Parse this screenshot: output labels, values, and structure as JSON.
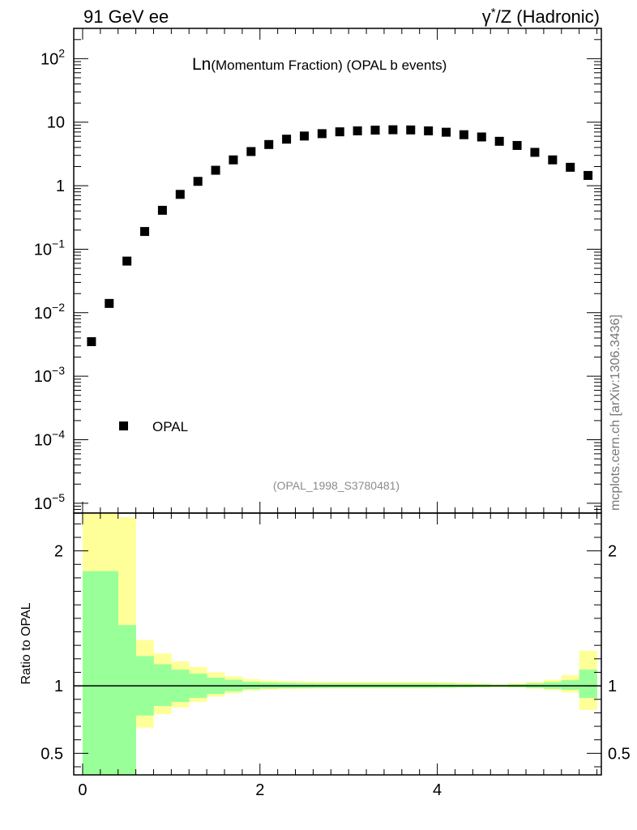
{
  "header": {
    "left": "91 GeV ee",
    "right_prefix": "γ",
    "right_sup": "*",
    "right_suffix": "/Z (Hadronic)"
  },
  "side_label": "mcplots.cern.ch [arXiv:1306.3436]",
  "chart_data": [
    {
      "type": "scatter",
      "title_main": "Ln",
      "title_rest": "(Momentum Fraction) (OPAL b events)",
      "yscale": "log",
      "ylim": [
        7e-06,
        300
      ],
      "xlim": [
        -0.1,
        5.85
      ],
      "y_ticks": [
        {
          "mantissa": "10",
          "exp": "2",
          "value": 100
        },
        {
          "mantissa": "10",
          "exp": "",
          "value": 10
        },
        {
          "mantissa": "1",
          "exp": "",
          "value": 1
        },
        {
          "mantissa": "10",
          "exp": "−1",
          "value": 0.1
        },
        {
          "mantissa": "10",
          "exp": "−2",
          "value": 0.01
        },
        {
          "mantissa": "10",
          "exp": "−3",
          "value": 0.001
        },
        {
          "mantissa": "10",
          "exp": "−4",
          "value": 0.0001
        },
        {
          "mantissa": "10",
          "exp": "−5",
          "value": 1e-05
        }
      ],
      "legend": {
        "label": "OPAL",
        "position": "lower-left"
      },
      "annotation": "(OPAL_1998_S3780481)",
      "series": [
        {
          "name": "OPAL",
          "x": [
            0.1,
            0.3,
            0.5,
            0.7,
            0.9,
            1.1,
            1.3,
            1.5,
            1.7,
            1.9,
            2.1,
            2.3,
            2.5,
            2.7,
            2.9,
            3.1,
            3.3,
            3.5,
            3.7,
            3.9,
            4.1,
            4.3,
            4.5,
            4.7,
            4.9,
            5.1,
            5.3,
            5.5,
            5.7
          ],
          "y": [
            0.0035,
            0.014,
            0.065,
            0.19,
            0.41,
            0.73,
            1.17,
            1.75,
            2.55,
            3.45,
            4.45,
            5.4,
            6.05,
            6.6,
            7.05,
            7.3,
            7.5,
            7.6,
            7.55,
            7.3,
            6.95,
            6.35,
            5.85,
            5.0,
            4.3,
            3.35,
            2.55,
            1.95,
            1.45
          ]
        }
      ]
    },
    {
      "type": "area",
      "ylabel": "Ratio to OPAL",
      "ylim": [
        0.34,
        2.28
      ],
      "xlim": [
        -0.1,
        5.85
      ],
      "x_ticks": [
        "0",
        "2",
        "4"
      ],
      "x_tick_values": [
        0,
        2,
        4
      ],
      "y_ticks": [
        "0.5",
        "1",
        "2"
      ],
      "y_tick_values": [
        0.5,
        1,
        2
      ],
      "reference_line": 1,
      "bin_edges": [
        0.0,
        0.4,
        0.6,
        0.8,
        1.0,
        1.2,
        1.4,
        1.6,
        1.8,
        2.0,
        2.2,
        2.4,
        2.6,
        2.8,
        3.0,
        3.2,
        3.4,
        3.6,
        3.8,
        4.0,
        4.2,
        4.4,
        4.6,
        4.8,
        5.0,
        5.2,
        5.4,
        5.6,
        5.8
      ],
      "band_inner": {
        "color": "#99ff99",
        "low": [
          0.34,
          0.34,
          0.78,
          0.85,
          0.88,
          0.91,
          0.94,
          0.96,
          0.975,
          0.98,
          0.982,
          0.983,
          0.984,
          0.985,
          0.985,
          0.985,
          0.985,
          0.985,
          0.985,
          0.986,
          0.988,
          0.99,
          0.992,
          0.99,
          0.985,
          0.978,
          0.97,
          0.91
        ],
        "high": [
          1.85,
          1.45,
          1.22,
          1.16,
          1.12,
          1.09,
          1.06,
          1.045,
          1.03,
          1.025,
          1.022,
          1.02,
          1.018,
          1.018,
          1.018,
          1.018,
          1.018,
          1.018,
          1.018,
          1.016,
          1.014,
          1.012,
          1.009,
          1.012,
          1.018,
          1.028,
          1.042,
          1.12
        ]
      },
      "band_outer": {
        "color": "#ffff99",
        "low": [
          0.34,
          0.34,
          0.69,
          0.79,
          0.84,
          0.88,
          0.92,
          0.945,
          0.965,
          0.972,
          0.976,
          0.978,
          0.98,
          0.98,
          0.98,
          0.98,
          0.98,
          0.98,
          0.98,
          0.982,
          0.984,
          0.987,
          0.99,
          0.986,
          0.978,
          0.968,
          0.95,
          0.82
        ],
        "high": [
          2.28,
          2.25,
          1.34,
          1.24,
          1.18,
          1.14,
          1.1,
          1.07,
          1.05,
          1.04,
          1.035,
          1.033,
          1.03,
          1.03,
          1.03,
          1.03,
          1.03,
          1.03,
          1.03,
          1.027,
          1.023,
          1.018,
          1.014,
          1.02,
          1.03,
          1.045,
          1.08,
          1.26
        ]
      }
    }
  ]
}
